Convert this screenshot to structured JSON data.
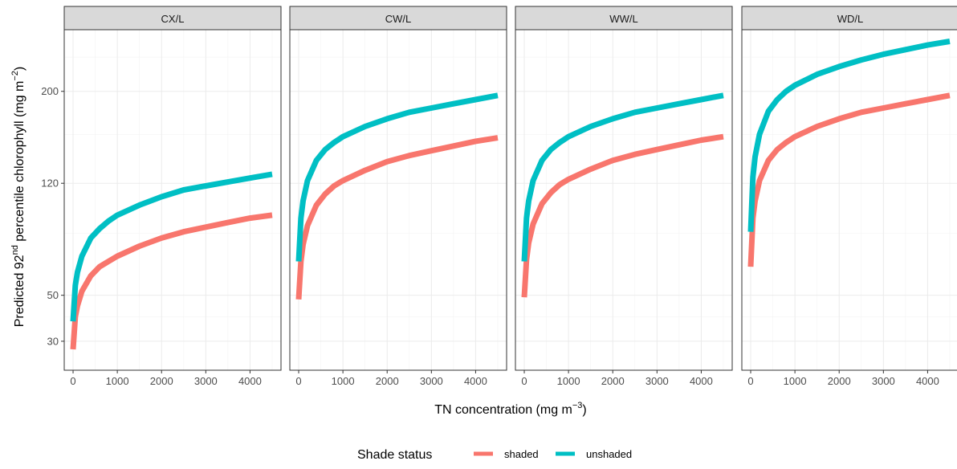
{
  "chart_data": {
    "type": "line",
    "xlabel": "TN concentration  (mg  m",
    "xlabel_sup": "−3",
    "xlabel_end": ")",
    "ylabel_parts": {
      "a": "Predicted 92",
      "sup1": "nd",
      "b": " percentile chlorophyll (mg   m",
      "sup2": "−2",
      "c": ")"
    },
    "x_ticks": [
      0,
      1000,
      2000,
      3000,
      4000
    ],
    "x_tick_labels": [
      "0",
      "1000",
      "2000",
      "3000",
      "4000"
    ],
    "y_ticks": [
      30,
      50,
      120,
      200
    ],
    "y_tick_labels": [
      "30",
      "50",
      "120",
      "200"
    ],
    "y_scale": "sqrt",
    "xlim": [
      -200,
      4700
    ],
    "ylim": [
      20,
      265
    ],
    "grid": true,
    "legend": {
      "title": "Shade status",
      "position": "bottom",
      "entries": [
        {
          "name": "shaded",
          "color": "#F8766D"
        },
        {
          "name": "unshaded",
          "color": "#00BFC4"
        }
      ]
    },
    "panels": [
      {
        "strip": "CX/L",
        "series": [
          {
            "name": "shaded",
            "color": "#F8766D",
            "x": [
              0,
              50,
              100,
              200,
              400,
              600,
              800,
              1000,
              1500,
              2000,
              2500,
              3000,
              3500,
              4000,
              4500
            ],
            "y": [
              27,
              40,
              45,
              52,
              60,
              65,
              68,
              71,
              77,
              82,
              86,
              89,
              92,
              95,
              97
            ]
          },
          {
            "name": "unshaded",
            "color": "#00BFC4",
            "x": [
              0,
              50,
              100,
              200,
              400,
              600,
              800,
              1000,
              1500,
              2000,
              2500,
              3000,
              3500,
              4000,
              4500
            ],
            "y": [
              38,
              55,
              62,
              71,
              82,
              88,
              93,
              97,
              104,
              110,
              115,
              118,
              121,
              124,
              127
            ]
          }
        ]
      },
      {
        "strip": "CW/L",
        "series": [
          {
            "name": "shaded",
            "color": "#F8766D",
            "x": [
              0,
              50,
              100,
              200,
              400,
              600,
              800,
              1000,
              1500,
              2000,
              2500,
              3000,
              3500,
              4000,
              4500
            ],
            "y": [
              48,
              68,
              78,
              90,
              104,
              112,
              118,
              122,
              130,
              137,
              142,
              146,
              150,
              154,
              157
            ]
          },
          {
            "name": "unshaded",
            "color": "#00BFC4",
            "x": [
              0,
              50,
              100,
              200,
              400,
              600,
              800,
              1000,
              1500,
              2000,
              2500,
              3000,
              3500,
              4000,
              4500
            ],
            "y": [
              68,
              95,
              107,
              122,
              138,
              147,
              153,
              158,
              167,
              174,
              180,
              184,
              188,
              192,
              196
            ]
          }
        ]
      },
      {
        "strip": "WW/L",
        "series": [
          {
            "name": "shaded",
            "color": "#F8766D",
            "x": [
              0,
              50,
              100,
              200,
              400,
              600,
              800,
              1000,
              1500,
              2000,
              2500,
              3000,
              3500,
              4000,
              4500
            ],
            "y": [
              49,
              69,
              79,
              91,
              105,
              113,
              119,
              123,
              131,
              138,
              143,
              147,
              151,
              155,
              158
            ]
          },
          {
            "name": "unshaded",
            "color": "#00BFC4",
            "x": [
              0,
              50,
              100,
              200,
              400,
              600,
              800,
              1000,
              1500,
              2000,
              2500,
              3000,
              3500,
              4000,
              4500
            ],
            "y": [
              68,
              95,
              107,
              122,
              138,
              147,
              153,
              158,
              167,
              174,
              180,
              184,
              188,
              192,
              196
            ]
          }
        ]
      },
      {
        "strip": "WD/L",
        "series": [
          {
            "name": "shaded",
            "color": "#F8766D",
            "x": [
              0,
              50,
              100,
              200,
              400,
              600,
              800,
              1000,
              1500,
              2000,
              2500,
              3000,
              3500,
              4000,
              4500
            ],
            "y": [
              65,
              95,
              107,
              122,
              138,
              147,
              153,
              158,
              167,
              174,
              180,
              184,
              188,
              192,
              196
            ]
          },
          {
            "name": "unshaded",
            "color": "#00BFC4",
            "x": [
              0,
              50,
              100,
              200,
              400,
              600,
              800,
              1000,
              1500,
              2000,
              2500,
              3000,
              3500,
              4000,
              4500
            ],
            "y": [
              86,
              125,
              141,
              160,
              181,
              192,
              200,
              206,
              217,
              225,
              232,
              238,
              243,
              248,
              252
            ]
          }
        ]
      }
    ]
  }
}
